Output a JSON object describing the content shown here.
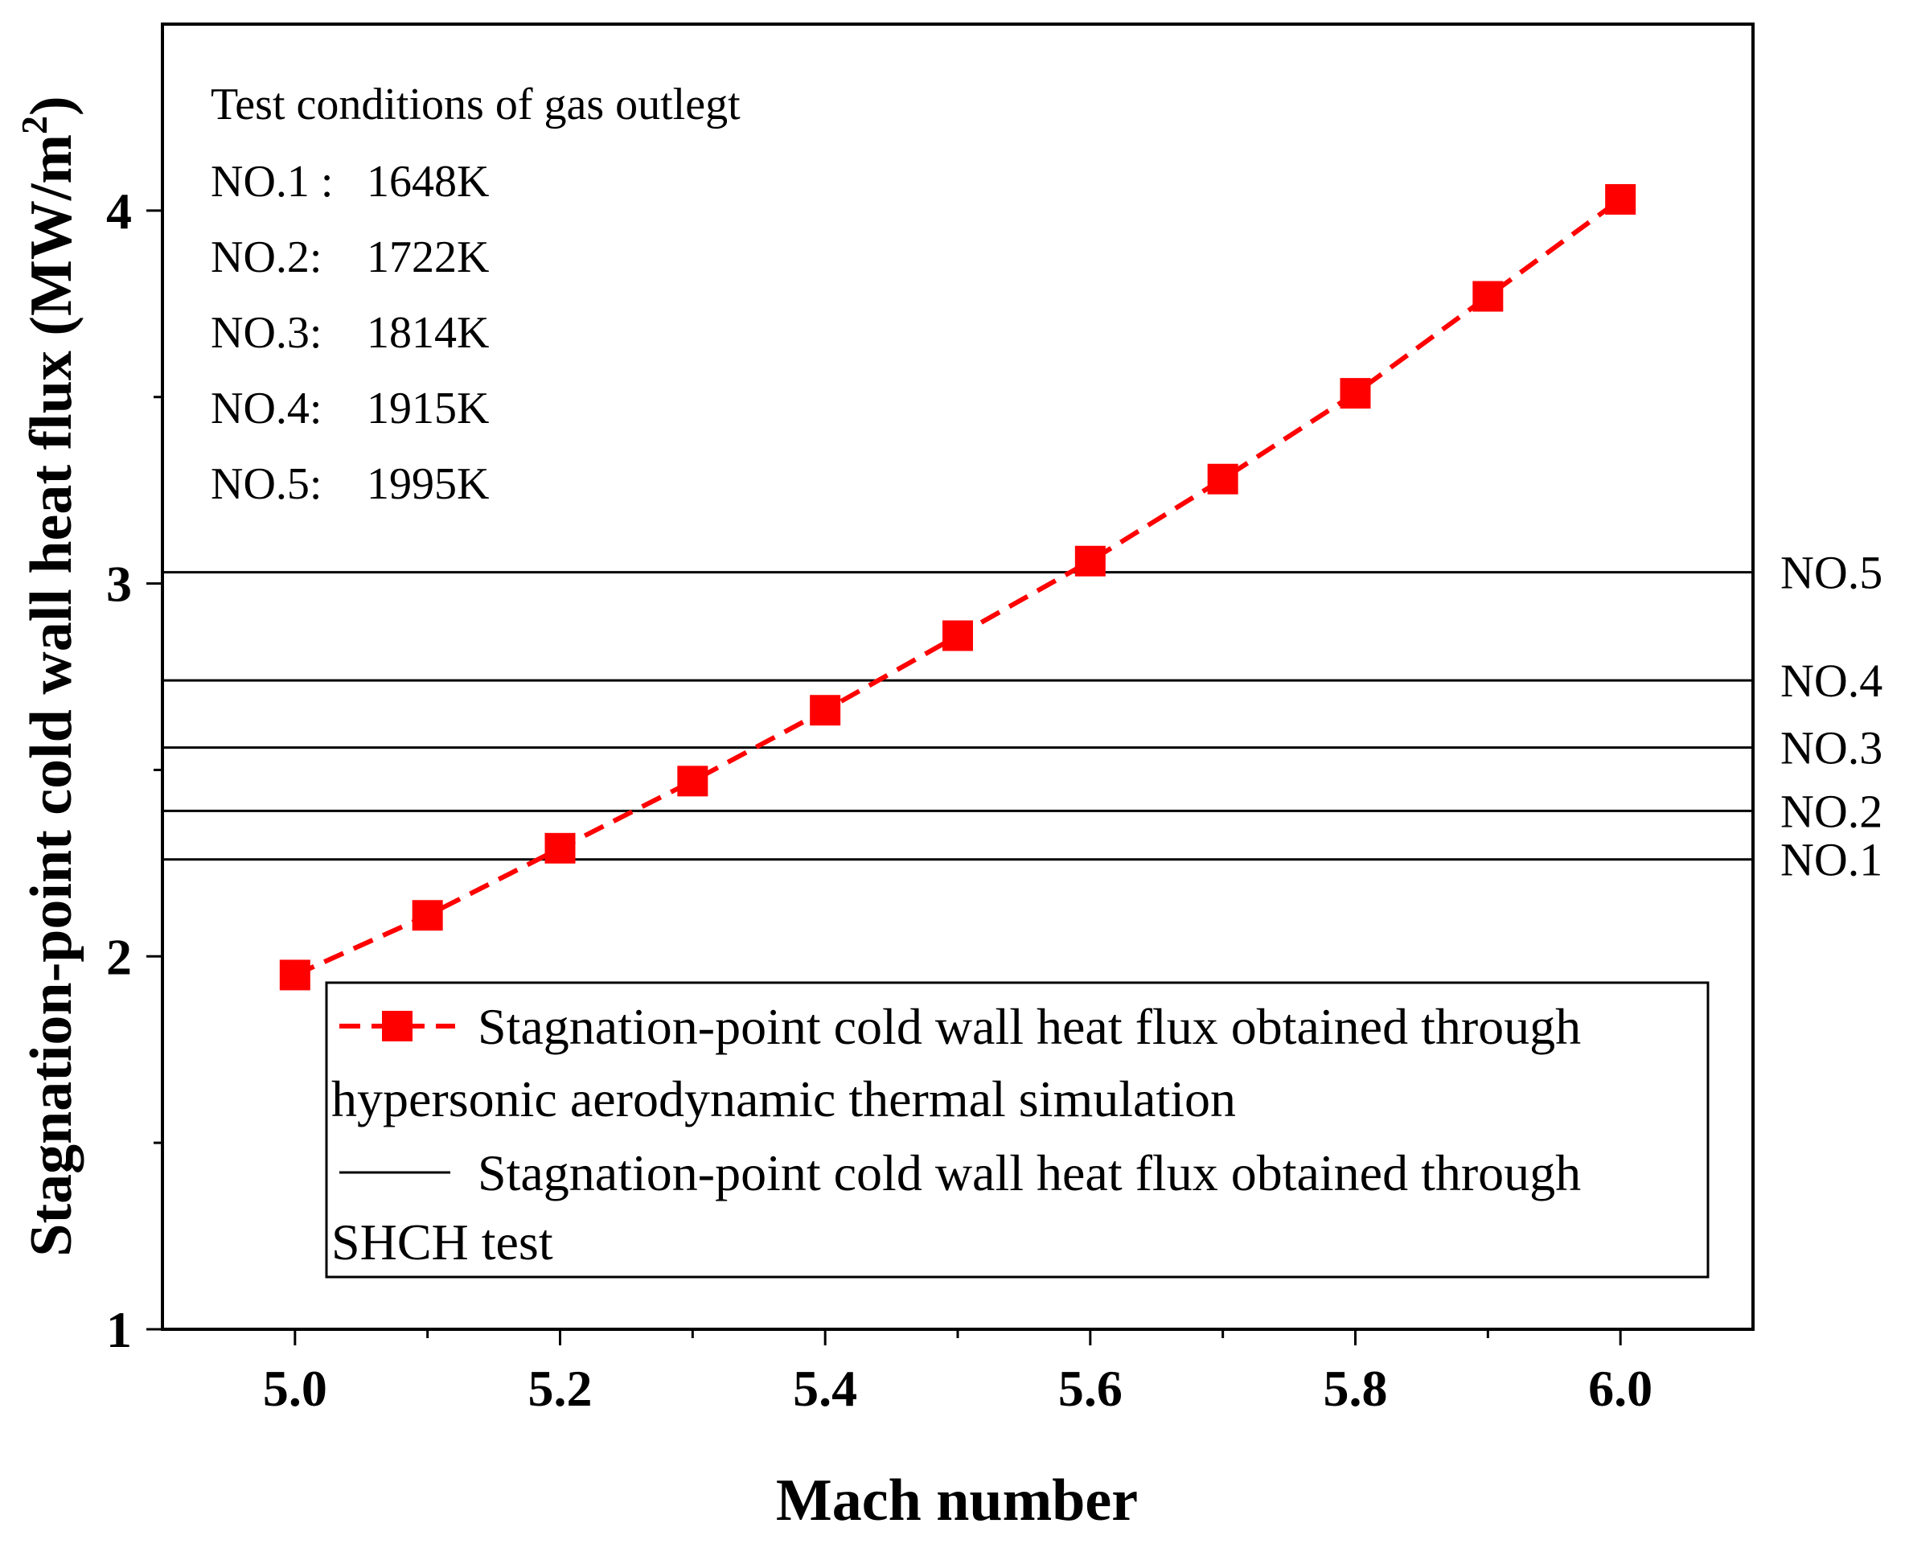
{
  "chart_data": {
    "type": "line",
    "title": "",
    "xlabel": "Mach number",
    "ylabel_main": "Stagnation-point cold wall heat flux (MW/m",
    "ylabel_sup": "2",
    "ylabel_close": ")",
    "xlim": [
      4.9,
      6.1
    ],
    "ylim": [
      1.0,
      4.5
    ],
    "xticks": [
      5.0,
      5.2,
      5.4,
      5.6,
      5.8,
      6.0
    ],
    "xtick_labels": [
      "5.0",
      "5.2",
      "5.4",
      "5.6",
      "5.8",
      "6.0"
    ],
    "xticks_minor": [
      5.1,
      5.3,
      5.5,
      5.7,
      5.9
    ],
    "yticks": [
      1,
      2,
      3,
      4
    ],
    "ytick_labels": [
      "1",
      "2",
      "3",
      "4"
    ],
    "yticks_minor": [
      1.5,
      2.5,
      3.5
    ],
    "grid": false,
    "series": [
      {
        "name": "Stagnation-point cold wall heat flux obtained through hypersonic aerodynamic thermal simulation",
        "style": "dashed line with square markers",
        "color": "#ff0000",
        "x": [
          5.0,
          5.1,
          5.2,
          5.3,
          5.4,
          5.5,
          5.6,
          5.7,
          5.8,
          5.9,
          6.0
        ],
        "y": [
          1.95,
          2.11,
          2.29,
          2.47,
          2.66,
          2.86,
          3.06,
          3.28,
          3.51,
          3.77,
          4.03
        ]
      }
    ],
    "reference_lines": [
      {
        "label": "NO.1",
        "y": 2.26,
        "temperature": "1648K"
      },
      {
        "label": "NO.2",
        "y": 2.39,
        "temperature": "1722K"
      },
      {
        "label": "NO.3",
        "y": 2.56,
        "temperature": "1814K"
      },
      {
        "label": "NO.4",
        "y": 2.74,
        "temperature": "1915K"
      },
      {
        "label": "NO.5",
        "y": 3.03,
        "temperature": "1995K"
      }
    ],
    "reference_color": "#000000",
    "annotation": {
      "heading": "Test conditions of gas outlegt",
      "lines": [
        {
          "label": "NO.1 :",
          "value": "1648K"
        },
        {
          "label": "NO.2:",
          "value": "1722K"
        },
        {
          "label": "NO.3:",
          "value": "1814K"
        },
        {
          "label": "NO.4:",
          "value": "1915K"
        },
        {
          "label": "NO.5:",
          "value": "1995K"
        }
      ]
    },
    "legend": {
      "placement": "bottom-right",
      "entries": [
        {
          "line1": "Stagnation-point cold wall heat flux obtained through",
          "line2": "hypersonic aerodynamic thermal simulation"
        },
        {
          "line1": "Stagnation-point cold wall heat flux obtained through",
          "line2": "SHCH test"
        }
      ]
    }
  }
}
